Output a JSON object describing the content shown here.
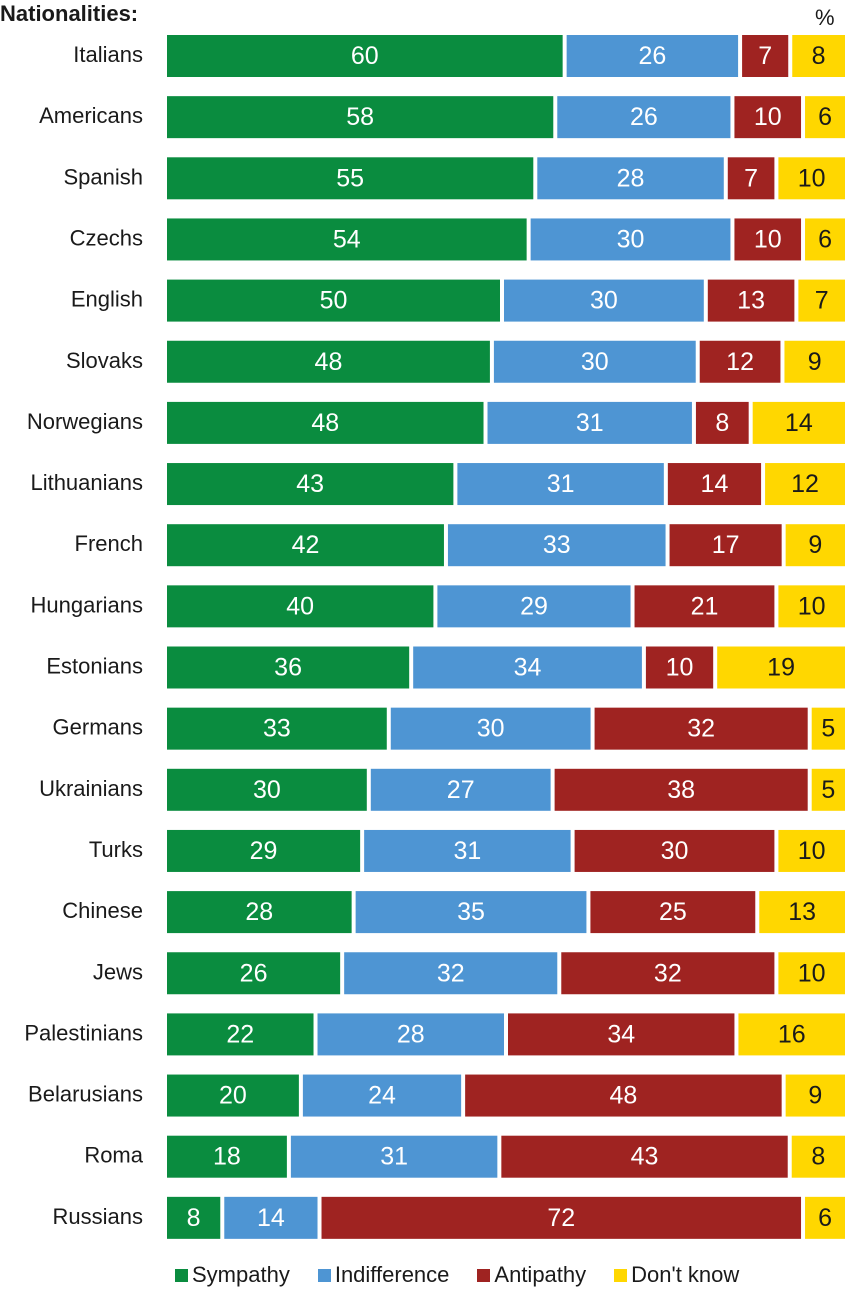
{
  "chart_data": {
    "type": "bar",
    "stacked": true,
    "orientation": "horizontal",
    "title": "Nationalities:",
    "unit_label": "%",
    "categories": [
      "Italians",
      "Americans",
      "Spanish",
      "Czechs",
      "English",
      "Slovaks",
      "Norwegians",
      "Lithuanians",
      "French",
      "Hungarians",
      "Estonians",
      "Germans",
      "Ukrainians",
      "Turks",
      "Chinese",
      "Jews",
      "Palestinians",
      "Belarusians",
      "Roma",
      "Russians"
    ],
    "series": [
      {
        "name": "Sympathy",
        "color": "#0a8c3f",
        "values": [
          60,
          58,
          55,
          54,
          50,
          48,
          48,
          43,
          42,
          40,
          36,
          33,
          30,
          29,
          28,
          26,
          22,
          20,
          18,
          8
        ]
      },
      {
        "name": "Indifference",
        "color": "#4e95d3",
        "values": [
          26,
          26,
          28,
          30,
          30,
          30,
          31,
          31,
          33,
          29,
          34,
          30,
          27,
          31,
          35,
          32,
          28,
          24,
          31,
          14
        ]
      },
      {
        "name": "Antipathy",
        "color": "#9f2321",
        "values": [
          7,
          10,
          7,
          10,
          13,
          12,
          8,
          14,
          17,
          21,
          10,
          32,
          38,
          30,
          25,
          32,
          34,
          48,
          43,
          72
        ]
      },
      {
        "name": "Don't know",
        "color": "#ffd700",
        "values": [
          8,
          6,
          10,
          6,
          7,
          9,
          14,
          12,
          9,
          10,
          19,
          5,
          5,
          10,
          13,
          10,
          16,
          9,
          8,
          6
        ]
      }
    ],
    "legend_position": "bottom",
    "grid": false
  }
}
